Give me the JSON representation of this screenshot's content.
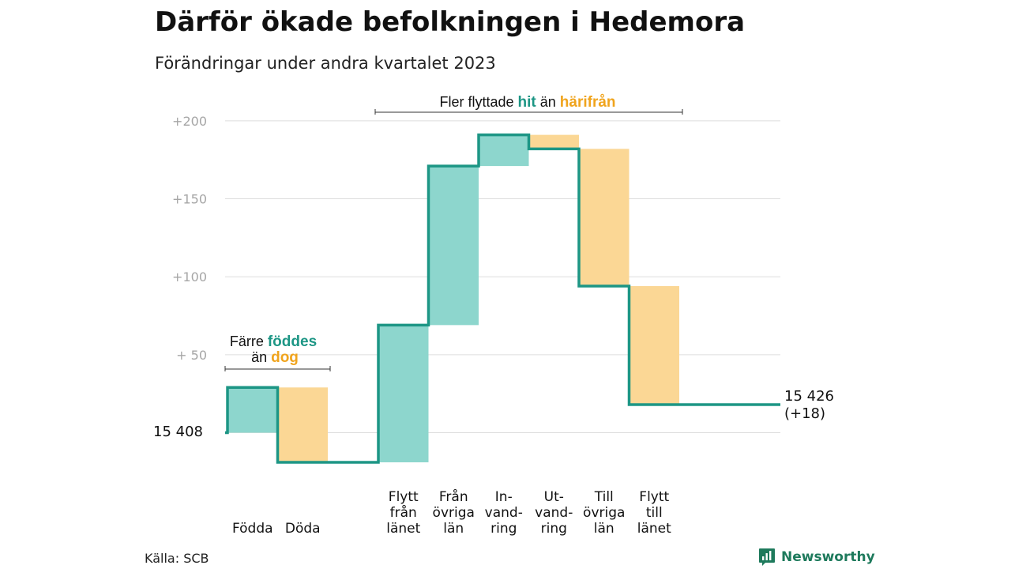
{
  "title": "Därför ökade befolkningen i Hedemora",
  "subtitle": "Förändringar under andra kvartalet 2023",
  "source": "Källa: SCB",
  "brand": {
    "name": "Newsworthy",
    "icon": "newsworthy-logo-icon"
  },
  "colors": {
    "inflow": "#8dd6cd",
    "outflow": "#fbd795",
    "line": "#1d9685",
    "hit_text": "#1d9685",
    "dog_text": "#f0a41d",
    "grid": "#dddddd",
    "tick_text": "#a6a6a6"
  },
  "chart_data": {
    "type": "waterfall",
    "title": "Därför ökade befolkningen i Hedemora",
    "subtitle": "Förändringar under andra kvartalet 2023",
    "start_label": "15  408",
    "start_value": 15408,
    "end_label_line1": "15 426",
    "end_label_line2": "(+18)",
    "end_value": 15426,
    "y_ticks": [
      {
        "value": 200,
        "label": "+200"
      },
      {
        "value": 150,
        "label": "+150"
      },
      {
        "value": 100,
        "label": "+100"
      },
      {
        "value": 50,
        "label": "+  50"
      }
    ],
    "ylim": [
      -19,
      205
    ],
    "grid": true,
    "steps": [
      {
        "label_lines": [
          "Födda"
        ],
        "change": 29,
        "kind": "inflow"
      },
      {
        "label_lines": [
          "Döda"
        ],
        "change": -48,
        "kind": "outflow"
      },
      {
        "label_lines": [
          "Flytt",
          "från",
          "länet"
        ],
        "change": 88,
        "kind": "inflow"
      },
      {
        "label_lines": [
          "Från",
          "övriga",
          "län"
        ],
        "change": 102,
        "kind": "inflow"
      },
      {
        "label_lines": [
          "In-",
          "vand-",
          "ring"
        ],
        "change": 20,
        "kind": "inflow"
      },
      {
        "label_lines": [
          "Ut-",
          "vand-",
          "ring"
        ],
        "change": -9,
        "kind": "outflow"
      },
      {
        "label_lines": [
          "Till",
          "övriga",
          "län"
        ],
        "change": -88,
        "kind": "outflow"
      },
      {
        "label_lines": [
          "Flytt",
          "till",
          "länet"
        ],
        "change": -76,
        "kind": "outflow"
      }
    ],
    "annotations": {
      "births": {
        "line1_a": "Färre ",
        "line1_b": "föddes",
        "line2_a": "än ",
        "line2_b": "dog"
      },
      "moves": {
        "text_a": "Fler flyttade ",
        "text_b": "hit",
        "text_c": " än ",
        "text_d": "härifrån"
      }
    }
  }
}
